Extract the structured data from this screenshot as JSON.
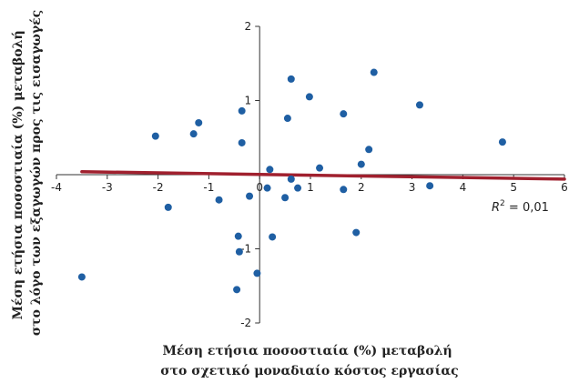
{
  "chart_data": {
    "type": "scatter",
    "xlabel": [
      "Μέση ετήσια ποσοστιαία (%) μεταβολή",
      "στο σχετικό μοναδιαίο κόστος εργασίας"
    ],
    "ylabel": [
      "Μέση ετήσια ποσοστιαία (%) μεταβολή",
      "στο λόγο των εξαγωγών προς τις εισαγωγές"
    ],
    "xlim": [
      -4,
      6
    ],
    "ylim": [
      -2,
      2
    ],
    "xticks": [
      "-4",
      "-3",
      "-2",
      "-1",
      "0",
      "1",
      "2",
      "3",
      "4",
      "5",
      "6"
    ],
    "yticks": [
      "-2",
      "-1",
      "0",
      "1",
      "2"
    ],
    "grid": false,
    "annotation": {
      "label": "R",
      "sup": "2",
      "rest": " = 0,01"
    },
    "marker_color": "#1f5fa3",
    "trend_color": "#a0202e",
    "trendline": {
      "x": [
        -3.5,
        6
      ],
      "y": [
        0.04,
        -0.06
      ]
    },
    "points": [
      [
        -3.5,
        -1.38
      ],
      [
        -2.05,
        0.52
      ],
      [
        -1.8,
        -0.44
      ],
      [
        -1.3,
        0.55
      ],
      [
        -1.2,
        0.7
      ],
      [
        -0.8,
        -0.34
      ],
      [
        -0.42,
        -0.83
      ],
      [
        -0.4,
        -1.04
      ],
      [
        -0.35,
        0.86
      ],
      [
        -0.35,
        0.43
      ],
      [
        -0.45,
        -1.55
      ],
      [
        -0.2,
        -0.29
      ],
      [
        -0.05,
        -1.33
      ],
      [
        0.2,
        0.07
      ],
      [
        0.15,
        -0.18
      ],
      [
        0.25,
        -0.84
      ],
      [
        0.5,
        -0.31
      ],
      [
        0.55,
        0.76
      ],
      [
        0.62,
        -0.06
      ],
      [
        0.62,
        1.29
      ],
      [
        0.75,
        -0.18
      ],
      [
        0.98,
        1.05
      ],
      [
        1.18,
        0.09
      ],
      [
        1.65,
        0.82
      ],
      [
        1.65,
        -0.2
      ],
      [
        1.9,
        -0.78
      ],
      [
        2.0,
        0.14
      ],
      [
        2.15,
        0.34
      ],
      [
        2.25,
        1.38
      ],
      [
        3.15,
        0.94
      ],
      [
        3.35,
        -0.15
      ],
      [
        4.78,
        0.44
      ]
    ]
  }
}
